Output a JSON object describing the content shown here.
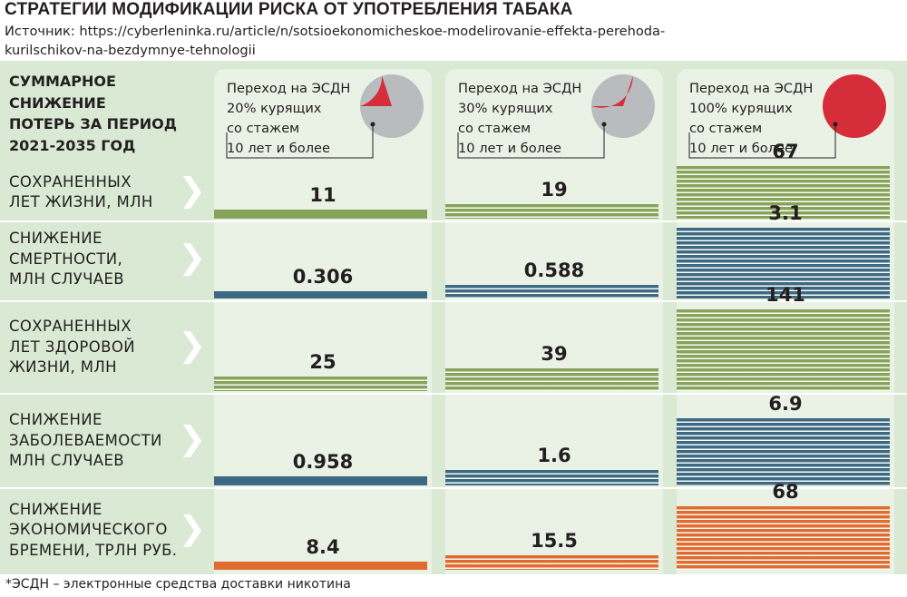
{
  "title": "СТРАТЕГИИ МОДИФИКАЦИИ РИСКА ОТ УПОТРЕБЛЕНИЯ ТАБАКА",
  "source_line1": "Источник: https://cyberleninka.ru/article/n/sotsioekonomicheskoe-modelirovanie-effekta-perehoda-",
  "source_line2": "kurilschikov-na-bezdymnye-tehnologii",
  "footnote": "*ЭСДН – электронные средства доставки никотина",
  "colors": {
    "green": "#87a35a",
    "blue": "#3d6a82",
    "orange": "#e06b2e",
    "pie_red": "#d52d3a",
    "pie_grey": "#b9bcbf"
  },
  "chart_data": {
    "type": "bar",
    "title": "СТРАТЕГИИ МОДИФИКАЦИИ РИСКА ОТ УПОТРЕБЛЕНИЯ ТАБАКА",
    "header_label": [
      "СУММАРНОЕ",
      "СНИЖЕНИЕ",
      "ПОТЕРЬ ЗА ПЕРИОД",
      "2021-2035 ГОД"
    ],
    "scenarios": [
      {
        "lines": [
          "Переход на ЭСДН",
          "20% курящих",
          "со стажем",
          "10 лет и более"
        ],
        "share": 0.2
      },
      {
        "lines": [
          "Переход на ЭСДН",
          "30% курящих",
          "со стажем",
          "10 лет и более"
        ],
        "share": 0.3
      },
      {
        "lines": [
          "Переход на ЭСДН",
          "100% курящих",
          "со стажем",
          "10 лет и более"
        ],
        "share": 1.0
      }
    ],
    "rows": [
      {
        "label": [
          "СОХРАНЕННЫХ",
          "ЛЕТ ЖИЗНИ, МЛН"
        ],
        "values": [
          11,
          19,
          67
        ],
        "labels": [
          "11",
          "19",
          "67"
        ],
        "color": "green"
      },
      {
        "label": [
          "СНИЖЕНИЕ",
          "СМЕРТНОСТИ,",
          "МЛН СЛУЧАЕВ"
        ],
        "values": [
          0.306,
          0.588,
          3.1
        ],
        "labels": [
          "0.306",
          "0.588",
          "3.1"
        ],
        "color": "blue"
      },
      {
        "label": [
          "СОХРАНЕННЫХ",
          "ЛЕТ ЗДОРОВОЙ",
          "ЖИЗНИ, МЛН"
        ],
        "values": [
          25,
          39,
          141
        ],
        "labels": [
          "25",
          "39",
          "141"
        ],
        "color": "green"
      },
      {
        "label": [
          "СНИЖЕНИЕ",
          "ЗАБОЛЕВАЕМОСТИ",
          "МЛН СЛУЧАЕВ"
        ],
        "values": [
          0.958,
          1.6,
          6.9
        ],
        "labels": [
          "0.958",
          "1.6",
          "6.9"
        ],
        "color": "blue"
      },
      {
        "label": [
          "СНИЖЕНИЕ",
          "ЭКОНОМИЧЕСКОГО",
          "БРЕМЕНИ, ТРЛН РУБ."
        ],
        "values": [
          8.4,
          15.5,
          68
        ],
        "labels": [
          "8.4",
          "15.5",
          "68"
        ],
        "color": "orange"
      }
    ]
  }
}
